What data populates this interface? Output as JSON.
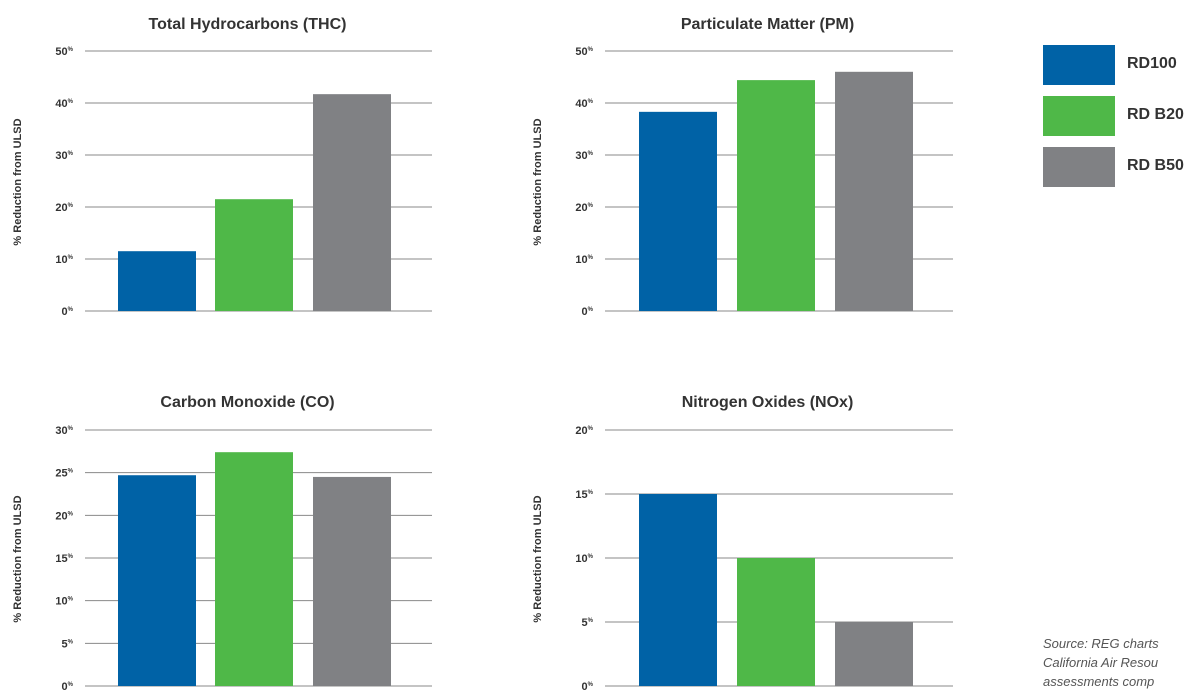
{
  "y_axis_label": "% Reduction from ULSD",
  "legend": [
    {
      "label": "RD100",
      "color": "#0062a6"
    },
    {
      "label": "RD B20",
      "color": "#4fb848"
    },
    {
      "label": "RD B50",
      "color": "#808184"
    }
  ],
  "source_lines": [
    "Source: REG charts",
    "California Air Resou",
    "assessments comp"
  ],
  "chart_data": [
    {
      "type": "bar",
      "title": "Total Hydrocarbons (THC)",
      "ylabel": "% Reduction from ULSD",
      "ylim": [
        0,
        50
      ],
      "yticks": [
        0,
        10,
        20,
        30,
        40,
        50
      ],
      "tick_labels": [
        "0%",
        "10%",
        "20%",
        "30%",
        "40%",
        "50%"
      ],
      "series": [
        {
          "name": "RD100",
          "values": [
            11.5
          ]
        },
        {
          "name": "RD B20",
          "values": [
            21.5
          ]
        },
        {
          "name": "RD B50",
          "values": [
            41.7
          ]
        }
      ]
    },
    {
      "type": "bar",
      "title": "Particulate Matter (PM)",
      "ylabel": "% Reduction from ULSD",
      "ylim": [
        0,
        50
      ],
      "yticks": [
        0,
        10,
        20,
        30,
        40,
        50
      ],
      "tick_labels": [
        "0%",
        "10%",
        "20%",
        "30%",
        "40%",
        "50%"
      ],
      "series": [
        {
          "name": "RD100",
          "values": [
            38.3
          ]
        },
        {
          "name": "RD B20",
          "values": [
            44.4
          ]
        },
        {
          "name": "RD B50",
          "values": [
            46.0
          ]
        }
      ]
    },
    {
      "type": "bar",
      "title": "Carbon Monoxide (CO)",
      "ylabel": "% Reduction from ULSD",
      "ylim": [
        0,
        30
      ],
      "yticks": [
        0,
        5,
        10,
        15,
        20,
        25,
        30
      ],
      "tick_labels": [
        "0%",
        "5%",
        "10%",
        "15%",
        "20%",
        "25%",
        "30%"
      ],
      "series": [
        {
          "name": "RD100",
          "values": [
            24.7
          ]
        },
        {
          "name": "RD B20",
          "values": [
            27.4
          ]
        },
        {
          "name": "RD B50",
          "values": [
            24.5
          ]
        }
      ]
    },
    {
      "type": "bar",
      "title": "Nitrogen Oxides (NOx)",
      "ylabel": "% Reduction from ULSD",
      "ylim": [
        0,
        20
      ],
      "yticks": [
        0,
        5,
        10,
        15,
        20
      ],
      "tick_labels": [
        "0%",
        "5%",
        "10%",
        "15%",
        "20%"
      ],
      "series": [
        {
          "name": "RD100",
          "values": [
            15.0
          ]
        },
        {
          "name": "RD B20",
          "values": [
            10.0
          ]
        },
        {
          "name": "RD B50",
          "values": [
            5.0
          ]
        }
      ]
    }
  ]
}
